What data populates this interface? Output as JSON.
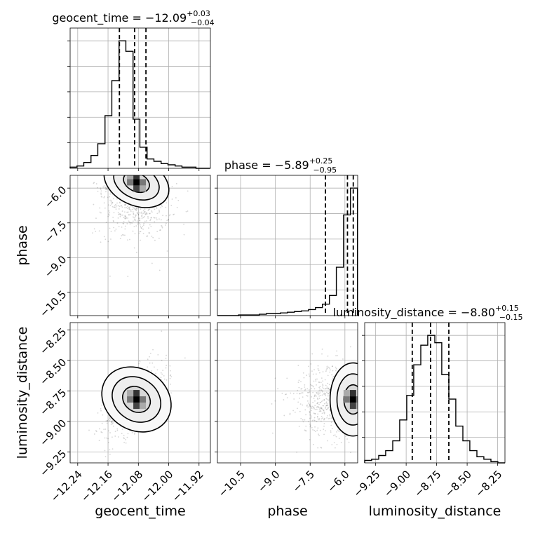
{
  "chart_data": {
    "type": "corner",
    "parameters": [
      "geocent_time",
      "phase",
      "luminosity_distance"
    ],
    "titles": [
      {
        "param": "geocent_time",
        "prefix": "geocent_time = ",
        "median": "−12.09",
        "plus": "+0.03",
        "minus": "−0.04"
      },
      {
        "param": "phase",
        "prefix": "phase = ",
        "median": "−5.89",
        "plus": "+0.25",
        "minus": "−0.95"
      },
      {
        "param": "luminosity_distance",
        "prefix": "luminosity_distance = ",
        "median": "−8.80",
        "plus": "+0.15",
        "minus": "−0.15"
      }
    ],
    "axis_labels": {
      "x": [
        "geocent_time",
        "phase",
        "luminosity_distance"
      ],
      "y": [
        "phase",
        "luminosity_distance"
      ]
    },
    "ranges": {
      "geocent_time": [
        -12.26,
        -11.89
      ],
      "phase": [
        -11.5,
        -5.45
      ],
      "luminosity_distance": [
        -9.34,
        -8.19
      ]
    },
    "ticks": {
      "geocent_time": [
        -12.24,
        -12.16,
        -12.08,
        -12.0,
        -11.92
      ],
      "phase": [
        -10.5,
        -9.0,
        -7.5,
        -6.0
      ],
      "luminosity_distance": [
        -9.25,
        -9.0,
        -8.75,
        -8.5,
        -8.25
      ]
    },
    "tick_labels": {
      "geocent_time": [
        "−12.24",
        "−12.16",
        "−12.08",
        "−12.00",
        "−11.92"
      ],
      "phase": [
        "−10.5",
        "−9.0",
        "−7.5",
        "−6.0"
      ],
      "luminosity_distance": [
        "−9.25",
        "−9.00",
        "−8.75",
        "−8.50",
        "−8.25"
      ]
    },
    "quantiles": {
      "geocent_time": [
        -12.13,
        -12.09,
        -12.06
      ],
      "phase": [
        -6.84,
        -5.89,
        -5.64
      ],
      "luminosity_distance": [
        -8.95,
        -8.8,
        -8.65
      ]
    },
    "histograms": {
      "geocent_time": {
        "edges": [
          -12.26,
          -12.242,
          -12.224,
          -12.205,
          -12.187,
          -12.168,
          -12.15,
          -12.131,
          -12.113,
          -12.094,
          -12.076,
          -12.057,
          -12.039,
          -12.02,
          -12.002,
          -11.983,
          -11.965,
          -11.947,
          -11.928,
          -11.91,
          -11.891
        ],
        "counts": [
          1,
          2,
          5,
          11,
          21,
          45,
          75,
          109,
          100,
          42,
          18,
          8,
          6,
          4,
          3,
          2,
          1,
          1,
          0,
          0
        ]
      },
      "phase": {
        "edges": [
          -11.5,
          -11.2,
          -10.9,
          -10.59,
          -10.29,
          -9.99,
          -9.69,
          -9.39,
          -9.08,
          -8.78,
          -8.48,
          -8.18,
          -7.88,
          -7.57,
          -7.27,
          -6.97,
          -6.67,
          -6.37,
          -6.06,
          -5.76,
          -5.46
        ],
        "counts": [
          0,
          0,
          0,
          1,
          1,
          1,
          2,
          3,
          3,
          4,
          5,
          6,
          7,
          9,
          12,
          17,
          30,
          72,
          150,
          190
        ]
      },
      "luminosity_distance": {
        "edges": [
          -9.34,
          -9.283,
          -9.225,
          -9.168,
          -9.11,
          -9.053,
          -8.995,
          -8.938,
          -8.88,
          -8.823,
          -8.765,
          -8.708,
          -8.65,
          -8.593,
          -8.535,
          -8.478,
          -8.42,
          -8.363,
          -8.305,
          -8.248,
          -8.19
        ],
        "counts": [
          2,
          3,
          6,
          10,
          18,
          35,
          55,
          80,
          96,
          104,
          98,
          72,
          52,
          30,
          18,
          10,
          5,
          3,
          1,
          0
        ]
      }
    },
    "density_2d": {
      "geocent_time__phase": {
        "peak": [
          -12.085,
          -5.75
        ],
        "spread": [
          0.045,
          1.1
        ],
        "correlation": -0.55
      },
      "geocent_time__luminosity_distance": {
        "peak": [
          -12.085,
          -8.82
        ],
        "spread": [
          0.04,
          0.15
        ],
        "correlation": 0.6
      },
      "phase__luminosity_distance": {
        "peak": [
          -5.65,
          -8.82
        ],
        "spread": [
          0.9,
          0.15
        ],
        "correlation": 0.0
      }
    },
    "grid": true
  }
}
